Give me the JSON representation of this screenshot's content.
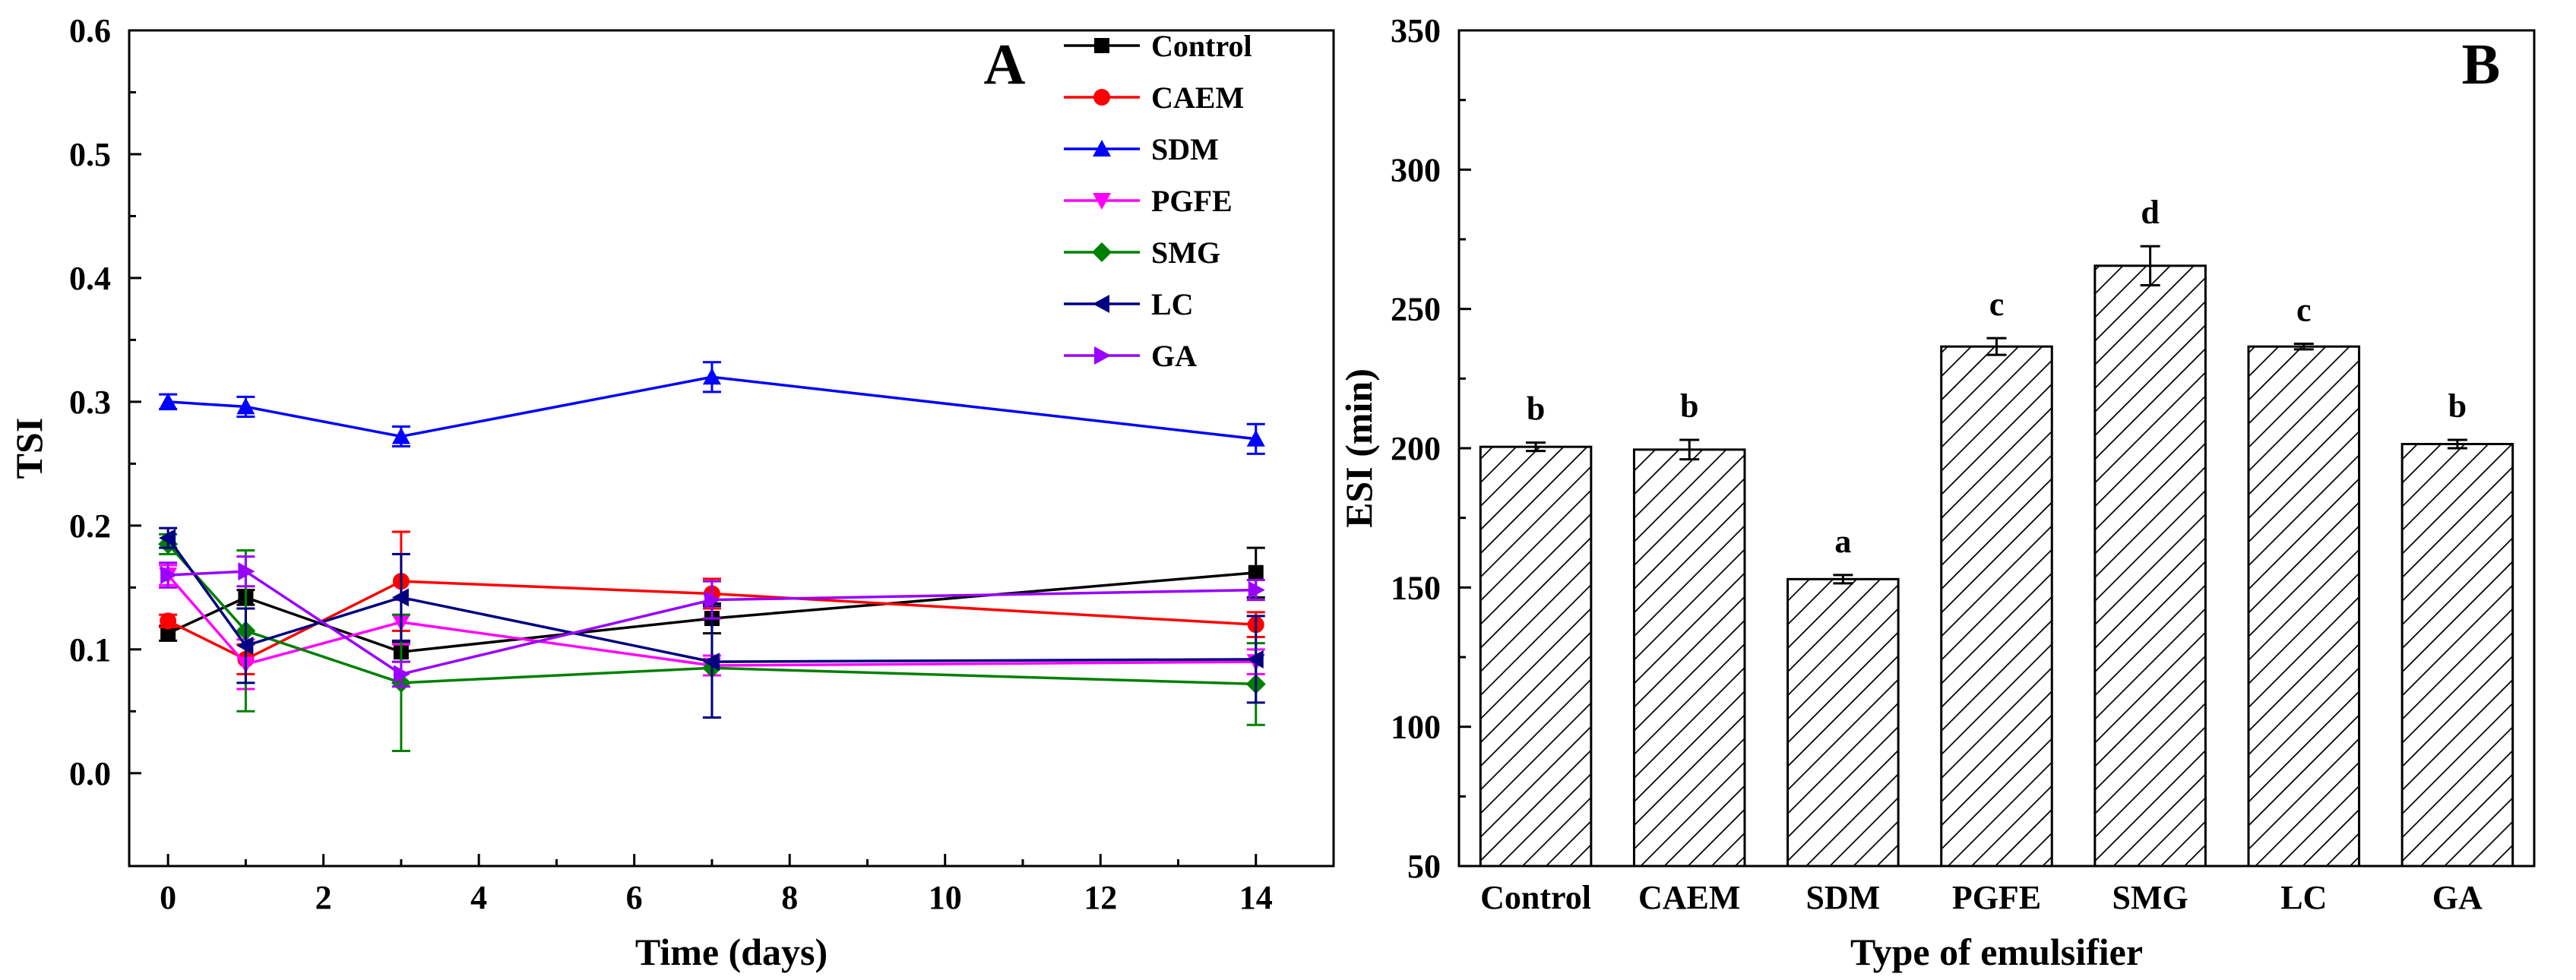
{
  "chart_data": [
    {
      "panel_label": "A",
      "type": "line",
      "xlabel": "Time (days)",
      "ylabel": "TSI",
      "xlim": [
        -0.5,
        15.0
      ],
      "ylim": [
        -0.075,
        0.6
      ],
      "xticks": [
        0,
        2,
        4,
        6,
        8,
        10,
        12,
        14
      ],
      "yticks": [
        0.0,
        0.1,
        0.2,
        0.3,
        0.4,
        0.5,
        0.6
      ],
      "ytick_labels": [
        "0.0",
        "0.1",
        "0.2",
        "0.3",
        "0.4",
        "0.5",
        "0.6"
      ],
      "legend_position": "top-right",
      "x": [
        0,
        1,
        3,
        7,
        14
      ],
      "series": [
        {
          "name": "Control",
          "color": "#000000",
          "marker": "square",
          "values": [
            0.113,
            0.142,
            0.098,
            0.125,
            0.162
          ],
          "errors": [
            0.006,
            0.006,
            0.008,
            0.012,
            0.02
          ]
        },
        {
          "name": "CAEM",
          "color": "#ff0000",
          "marker": "circle",
          "values": [
            0.123,
            0.092,
            0.155,
            0.145,
            0.12
          ],
          "errors": [
            0.005,
            0.012,
            0.04,
            0.012,
            0.01
          ]
        },
        {
          "name": "SDM",
          "color": "#0000ff",
          "marker": "triangle-up",
          "values": [
            0.3,
            0.296,
            0.272,
            0.32,
            0.27
          ],
          "errors": [
            0.006,
            0.008,
            0.008,
            0.012,
            0.012
          ]
        },
        {
          "name": "PGFE",
          "color": "#ff00ff",
          "marker": "triangle-down",
          "values": [
            0.16,
            0.088,
            0.122,
            0.087,
            0.09
          ],
          "errors": [
            0.008,
            0.02,
            0.018,
            0.008,
            0.01
          ]
        },
        {
          "name": "SMG",
          "color": "#008000",
          "marker": "diamond",
          "values": [
            0.185,
            0.115,
            0.073,
            0.085,
            0.072
          ],
          "errors": [
            0.008,
            0.065,
            0.055,
            0.04,
            0.033
          ]
        },
        {
          "name": "LC",
          "color": "#000080",
          "marker": "triangle-left",
          "values": [
            0.19,
            0.103,
            0.142,
            0.09,
            0.092
          ],
          "errors": [
            0.008,
            0.03,
            0.035,
            0.045,
            0.035
          ]
        },
        {
          "name": "GA",
          "color": "#9900ff",
          "marker": "triangle-right",
          "values": [
            0.16,
            0.163,
            0.08,
            0.14,
            0.148
          ],
          "errors": [
            0.01,
            0.012,
            0.01,
            0.015,
            0.008
          ]
        }
      ]
    },
    {
      "panel_label": "B",
      "type": "bar",
      "xlabel": "Type of emulsifier",
      "ylabel": "ESI (min)",
      "ylim": [
        50,
        350
      ],
      "yticks": [
        50,
        100,
        150,
        200,
        250,
        300,
        350
      ],
      "categories": [
        "Control",
        "CAEM",
        "SDM",
        "PGFE",
        "SMG",
        "LC",
        "GA"
      ],
      "values": [
        200.5,
        199.5,
        153.0,
        236.5,
        265.5,
        236.5,
        201.5
      ],
      "errors": [
        1.5,
        3.5,
        1.5,
        3.0,
        7.0,
        1.0,
        1.5
      ],
      "significance": [
        "b",
        "b",
        "a",
        "c",
        "d",
        "c",
        "b"
      ],
      "bar_fill": "hatched"
    }
  ]
}
